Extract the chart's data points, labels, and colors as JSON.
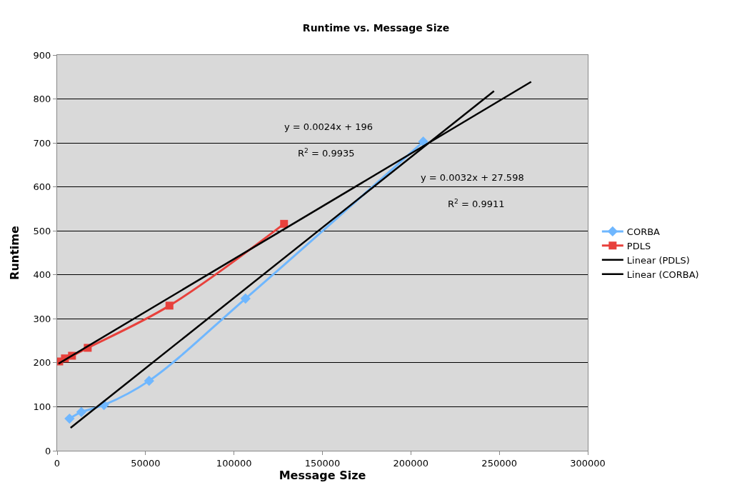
{
  "chart_data": {
    "type": "line",
    "title": "Runtime vs. Message Size",
    "xlabel": "Message Size",
    "ylabel": "Runtime",
    "xlim": [
      0,
      300000
    ],
    "xticks": [
      0,
      50000,
      100000,
      150000,
      200000,
      250000,
      300000
    ],
    "ylim": [
      0,
      900
    ],
    "yticks": [
      0,
      100,
      200,
      300,
      400,
      500,
      600,
      700,
      800,
      900
    ],
    "grid": "y",
    "legend": "right",
    "series": [
      {
        "name": "CORBA",
        "color": "#6fb7ff",
        "marker": "diamond",
        "x": [
          7000,
          13700,
          26500,
          52000,
          106500,
          207000
        ],
        "values": [
          73,
          88,
          104,
          159,
          346,
          703
        ]
      },
      {
        "name": "PDLS",
        "color": "#e8413c",
        "marker": "square",
        "x": [
          1200,
          4400,
          8400,
          17300,
          63500,
          128300
        ],
        "values": [
          203,
          210,
          216,
          234,
          330,
          516
        ]
      },
      {
        "name": "Linear (PDLS)",
        "color": "#000000",
        "marker": "none",
        "x": [
          800,
          268000
        ],
        "values": [
          198,
          839
        ]
      },
      {
        "name": "Linear (CORBA)",
        "color": "#000000",
        "marker": "none",
        "x": [
          7600,
          247000
        ],
        "values": [
          52,
          818
        ]
      }
    ],
    "annotations": [
      "y = 0.0024x + 196",
      "R$^{2}$ = 0.9935",
      "y = 0.0032x + 27.598",
      "R$^{2}$ = 0.9911"
    ]
  }
}
